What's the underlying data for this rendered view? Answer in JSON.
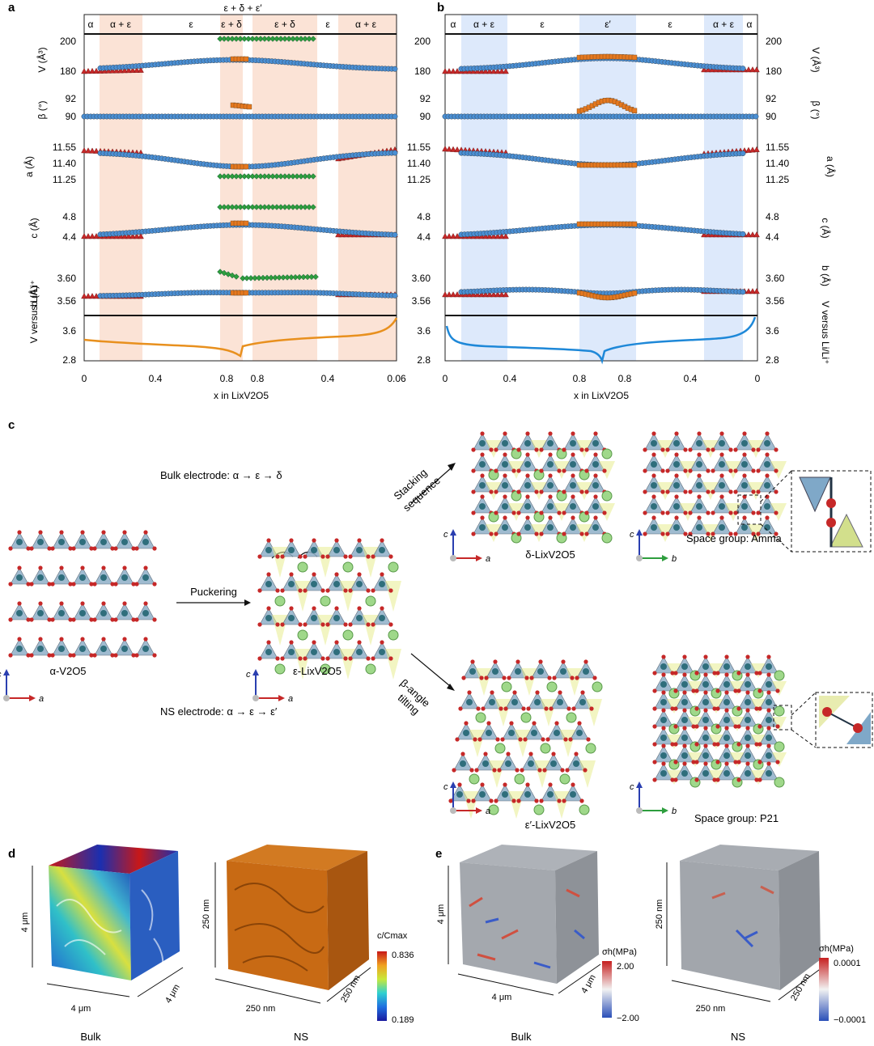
{
  "panel_a": {
    "letter": "a",
    "phase_top": "ε + δ + ε′",
    "phases": [
      "α",
      "α + ε",
      "ε",
      "ε + δ",
      "ε + δ",
      "ε",
      "α + ε"
    ],
    "y_labels": [
      "V (Å³)",
      "β (°)",
      "a (Å)",
      "c (Å)",
      "b (Å)"
    ],
    "voltage_label": "V versus Li/Li⁺",
    "ticks_V": [
      "200",
      "180"
    ],
    "ticks_beta": [
      "92",
      "90"
    ],
    "ticks_a": [
      "11.55",
      "11.40",
      "11.25"
    ],
    "ticks_c": [
      "4.8",
      "4.4"
    ],
    "ticks_b": [
      "3.60",
      "3.56"
    ],
    "ticks_volt": [
      "3.6",
      "2.8"
    ],
    "x_ticks": [
      "0",
      "0.4",
      "0.8",
      "0.8",
      "0.4",
      "0.06"
    ],
    "x_label": "x in LixV2O5"
  },
  "panel_b": {
    "letter": "b",
    "phases": [
      "α",
      "α + ε",
      "ε",
      "ε′",
      "ε",
      "α + ε",
      "α"
    ],
    "y_labels": [
      "V (Å³)",
      "β (°)",
      "a (Å)",
      "c (Å)",
      "b (Å)"
    ],
    "voltage_label": "V versus Li/Li⁺",
    "x_ticks": [
      "0",
      "0.4",
      "0.8",
      "0.8",
      "0.4",
      "0"
    ],
    "x_label": "x in LixV2O5"
  },
  "panel_c": {
    "letter": "c",
    "bulk_path": "Bulk electrode: α → ε → δ",
    "ns_path": "NS electrode: α → ε → ε′",
    "puckering": "Puckering",
    "stacking_1": "Stacking",
    "stacking_2": "sequence",
    "tilting_1": "β-angle",
    "tilting_2": "tilting",
    "alpha_label": "α-V2O5",
    "eps_label": "ε-LixV2O5",
    "delta_label": "δ-LixV2O5",
    "epsp_label": "ε′-LixV2O5",
    "sg1": "Space group: Amma",
    "sg2": "Space group: P21",
    "axis_c": "c",
    "axis_a": "a",
    "axis_b": "b"
  },
  "panel_d": {
    "letter": "d",
    "bulk_dim": "4 μm",
    "ns_dim": "250 nm",
    "colorbar_title": "c/Cmax",
    "colorbar_max": "0.836",
    "colorbar_min": "0.189",
    "bulk_label": "Bulk",
    "ns_label": "NS"
  },
  "panel_e": {
    "letter": "e",
    "bulk_dim": "4 μm",
    "ns_dim": "250 nm",
    "cb1_title": "σh(MPa)",
    "cb1_max": "2.00",
    "cb1_min": "−2.00",
    "cb2_title": "σh(MPa)",
    "cb2_max": "0.0001",
    "cb2_min": "−0.0001",
    "bulk_label": "Bulk",
    "ns_label": "NS"
  },
  "colors": {
    "alpha_red": "#c62828",
    "eps_blue": "#4a8fd4",
    "delta_green": "#2e9e3e",
    "epsp_orange": "#e6781e",
    "volt_orange": "#e8901e",
    "volt_blue": "#1e88d8",
    "shade_orange": "#fbe3d6",
    "shade_blue": "#dde9fb",
    "bulk_cube": "#cc6a14"
  }
}
